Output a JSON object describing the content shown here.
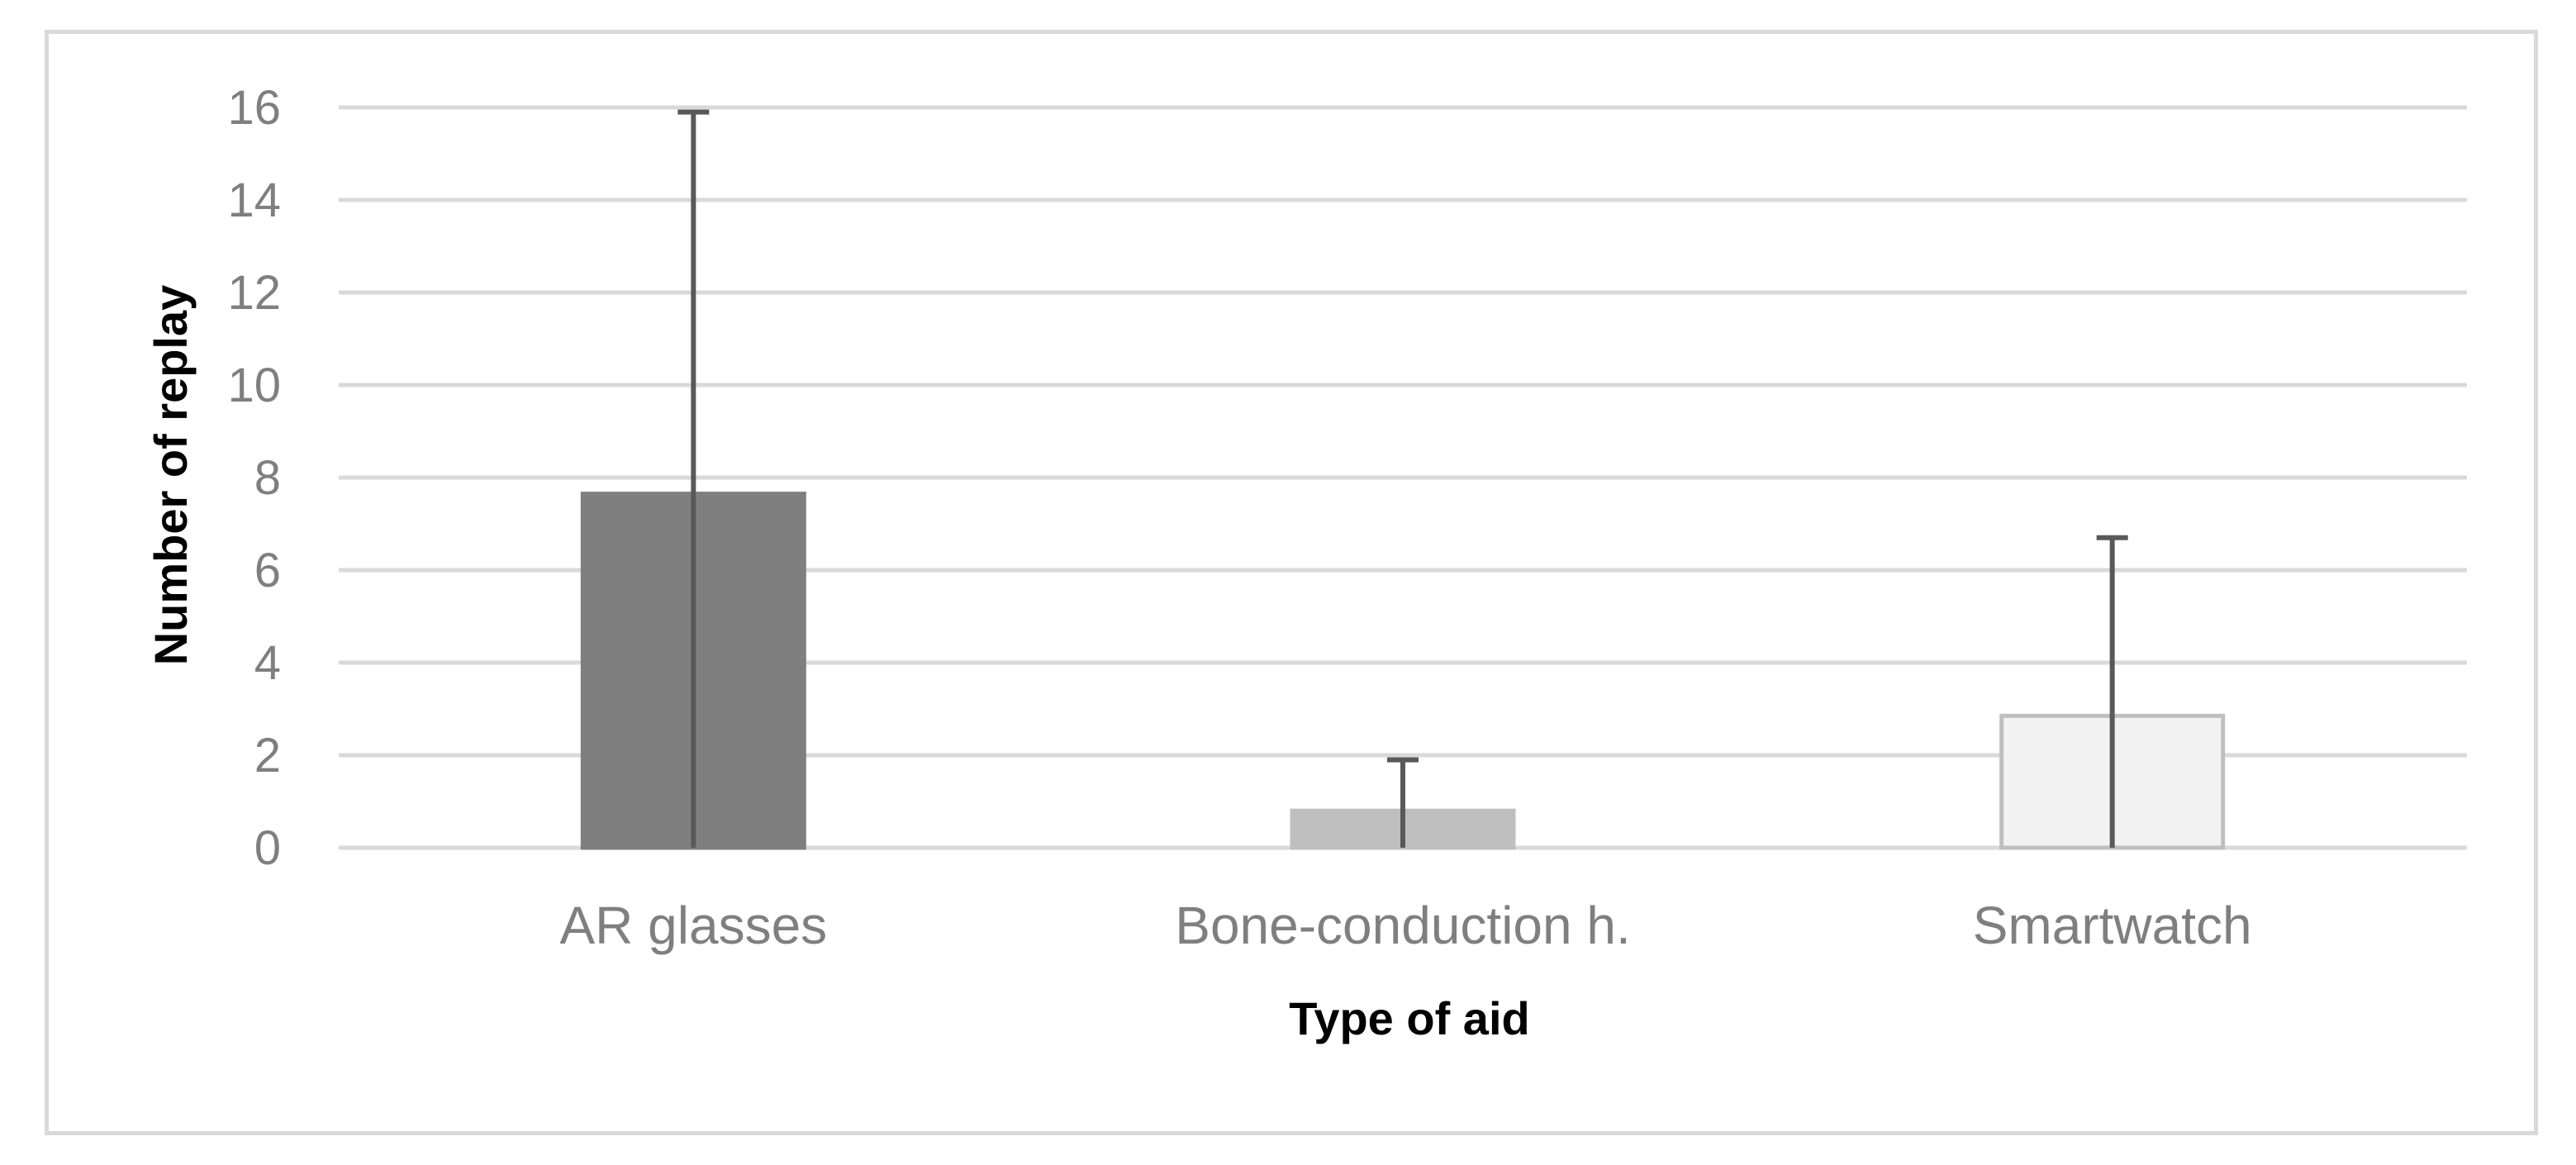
{
  "chart_data": {
    "type": "bar",
    "title": "",
    "xlabel": "Type of aid",
    "ylabel": "Number of replay",
    "categories": [
      "AR glasses",
      "Bone-conduction h.",
      "Smartwatch"
    ],
    "values": [
      7.65,
      0.8,
      2.85
    ],
    "error_upper": [
      15.9,
      1.9,
      6.7
    ],
    "ylim": [
      0,
      16
    ],
    "yticks": [
      "0",
      "2",
      "4",
      "6",
      "8",
      "10",
      "12",
      "14",
      "16"
    ],
    "grid": true,
    "legend": "none",
    "colors": {
      "bars": [
        "#7f7f7f",
        "#bfbfbf",
        "#f2f2f2"
      ],
      "bar_borders": [
        "#7f7f7f",
        "#bfbfbf",
        "#bfbfbf"
      ],
      "error_bars": "#595959",
      "grid": "#d9d9d9"
    }
  }
}
